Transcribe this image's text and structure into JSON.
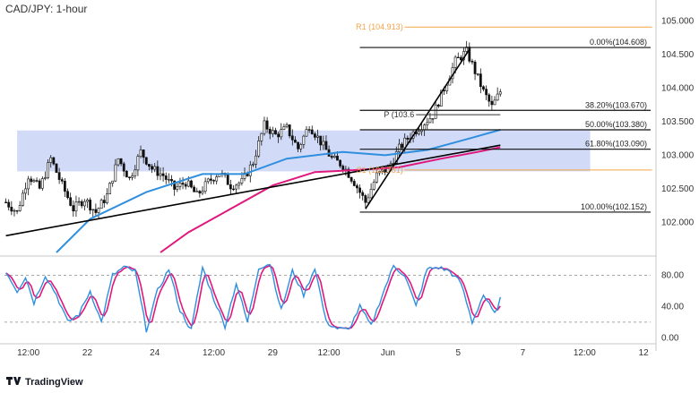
{
  "chart_data": {
    "type": "candlestick",
    "title": "CAD/JPY: 1-hour",
    "watermark": "TradingView",
    "price_axis": {
      "ylim": [
        101.55,
        105.25
      ],
      "ticks": [
        102.0,
        102.5,
        103.0,
        103.5,
        104.0,
        104.5,
        105.0
      ],
      "tick_labels": [
        "102.000",
        "102.500",
        "103.000",
        "103.500",
        "104.000",
        "104.500",
        "105.000"
      ]
    },
    "time_axis": {
      "ticks": [
        {
          "i": 8,
          "label": "12:00"
        },
        {
          "i": 29,
          "label": "22"
        },
        {
          "i": 53,
          "label": "24"
        },
        {
          "i": 74,
          "label": "12:00"
        },
        {
          "i": 95,
          "label": "29"
        },
        {
          "i": 115,
          "label": "12:00"
        },
        {
          "i": 136,
          "label": "Jun"
        },
        {
          "i": 161,
          "label": "5"
        },
        {
          "i": 184,
          "label": "7"
        },
        {
          "i": 206,
          "label": "12:00"
        },
        {
          "i": 227,
          "label": "12"
        }
      ],
      "total_slots": 230
    },
    "price_anchors": [
      [
        0,
        102.3
      ],
      [
        4,
        102.15
      ],
      [
        8,
        102.7
      ],
      [
        12,
        102.5
      ],
      [
        16,
        102.95
      ],
      [
        20,
        102.55
      ],
      [
        24,
        102.2
      ],
      [
        28,
        102.35
      ],
      [
        32,
        102.15
      ],
      [
        36,
        102.4
      ],
      [
        40,
        102.95
      ],
      [
        44,
        102.65
      ],
      [
        48,
        103.05
      ],
      [
        52,
        102.8
      ],
      [
        56,
        102.7
      ],
      [
        60,
        102.5
      ],
      [
        64,
        102.6
      ],
      [
        68,
        102.4
      ],
      [
        72,
        102.6
      ],
      [
        76,
        102.75
      ],
      [
        80,
        102.55
      ],
      [
        84,
        102.6
      ],
      [
        88,
        102.9
      ],
      [
        92,
        103.45
      ],
      [
        96,
        103.3
      ],
      [
        100,
        103.4
      ],
      [
        104,
        103.1
      ],
      [
        108,
        103.45
      ],
      [
        112,
        103.2
      ],
      [
        116,
        102.95
      ],
      [
        120,
        102.85
      ],
      [
        124,
        102.6
      ],
      [
        128,
        102.3
      ],
      [
        132,
        102.7
      ],
      [
        136,
        102.8
      ],
      [
        140,
        103.1
      ],
      [
        144,
        103.3
      ],
      [
        148,
        103.45
      ],
      [
        152,
        103.6
      ],
      [
        156,
        104.0
      ],
      [
        160,
        104.4
      ],
      [
        164,
        104.55
      ],
      [
        167,
        104.25
      ],
      [
        170,
        103.95
      ],
      [
        173,
        103.72
      ],
      [
        176,
        103.95
      ]
    ],
    "candles_estimated": true,
    "moving_averages": [
      {
        "color": "#2f8fde",
        "points": [
          [
            18,
            101.55
          ],
          [
            30,
            102.05
          ],
          [
            50,
            102.45
          ],
          [
            70,
            102.72
          ],
          [
            85,
            102.72
          ],
          [
            100,
            102.95
          ],
          [
            120,
            103.05
          ],
          [
            135,
            103.0
          ],
          [
            150,
            103.08
          ],
          [
            165,
            103.25
          ],
          [
            176,
            103.38
          ]
        ]
      },
      {
        "color": "#e0187d",
        "points": [
          [
            55,
            101.55
          ],
          [
            65,
            101.85
          ],
          [
            80,
            102.2
          ],
          [
            95,
            102.55
          ],
          [
            110,
            102.75
          ],
          [
            125,
            102.78
          ],
          [
            140,
            102.82
          ],
          [
            155,
            102.95
          ],
          [
            168,
            103.05
          ],
          [
            176,
            103.12
          ]
        ]
      }
    ],
    "trendlines": [
      {
        "from": [
          0,
          101.8
        ],
        "to": [
          176,
          103.15
        ],
        "color": "#000000"
      },
      {
        "from": [
          128,
          102.2
        ],
        "to": [
          165,
          104.58
        ],
        "color": "#000000"
      }
    ],
    "zone": {
      "x_from": 4,
      "x_to": 208,
      "y_from": 102.76,
      "y_to": 103.37,
      "color": "#c9d5f7"
    },
    "fibonacci": {
      "x_from": 126,
      "x_to": 230,
      "levels": [
        {
          "label": "0.00%(104.608)",
          "value": 104.608
        },
        {
          "label": "38.20%(103.670)",
          "value": 103.67
        },
        {
          "label": "50.00%(103.380)",
          "value": 103.38
        },
        {
          "label": "61.80%(103.090)",
          "value": 103.09
        },
        {
          "label": "100.00%(102.152)",
          "value": 102.152
        }
      ]
    },
    "pivots": [
      {
        "label": "R1 (104.913)",
        "value": 104.913,
        "x_from": 142,
        "x_to": 230,
        "color": "#f5a34a"
      },
      {
        "label": "P (103.6",
        "value": 103.605,
        "x_from": 146,
        "x_to": 176,
        "color": "#333333"
      },
      {
        "label": "S1 (102.781)",
        "value": 102.781,
        "x_from": 142,
        "x_to": 230,
        "color": "#f5a34a"
      }
    ],
    "stochastic": {
      "ylim": [
        -3,
        100
      ],
      "ticks": [
        0,
        40,
        80
      ],
      "tick_labels": [
        "0.00",
        "40.00",
        "80.00"
      ],
      "bands": [
        20,
        80
      ],
      "k_anchors": [
        [
          0,
          85
        ],
        [
          4,
          60
        ],
        [
          7,
          78
        ],
        [
          10,
          45
        ],
        [
          14,
          80
        ],
        [
          18,
          55
        ],
        [
          22,
          20
        ],
        [
          26,
          30
        ],
        [
          30,
          60
        ],
        [
          34,
          20
        ],
        [
          38,
          80
        ],
        [
          42,
          90
        ],
        [
          46,
          85
        ],
        [
          50,
          10
        ],
        [
          54,
          60
        ],
        [
          58,
          88
        ],
        [
          62,
          35
        ],
        [
          66,
          10
        ],
        [
          70,
          90
        ],
        [
          74,
          50
        ],
        [
          78,
          15
        ],
        [
          82,
          70
        ],
        [
          86,
          20
        ],
        [
          90,
          90
        ],
        [
          94,
          95
        ],
        [
          98,
          35
        ],
        [
          102,
          85
        ],
        [
          106,
          55
        ],
        [
          110,
          90
        ],
        [
          114,
          20
        ],
        [
          118,
          12
        ],
        [
          122,
          10
        ],
        [
          126,
          40
        ],
        [
          130,
          15
        ],
        [
          134,
          55
        ],
        [
          138,
          92
        ],
        [
          142,
          80
        ],
        [
          146,
          40
        ],
        [
          150,
          88
        ],
        [
          154,
          90
        ],
        [
          158,
          85
        ],
        [
          162,
          70
        ],
        [
          166,
          20
        ],
        [
          170,
          55
        ],
        [
          174,
          30
        ],
        [
          176,
          50
        ]
      ],
      "k_color": "#2f8fde",
      "d_color": "#e0187d"
    }
  }
}
